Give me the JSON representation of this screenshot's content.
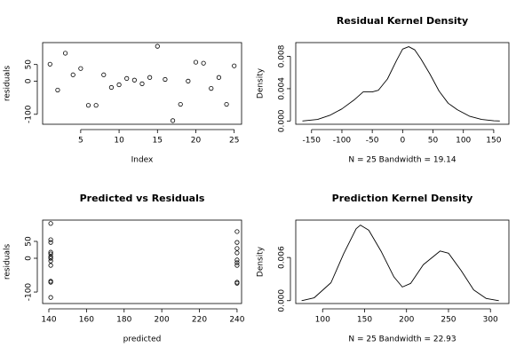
{
  "chart_data": [
    {
      "type": "scatter",
      "xlabel": "Index",
      "ylabel": "residuals",
      "x": [
        1,
        2,
        3,
        4,
        5,
        6,
        7,
        8,
        9,
        10,
        11,
        12,
        13,
        14,
        15,
        16,
        17,
        18,
        19,
        20,
        21,
        22,
        23,
        24,
        25
      ],
      "values": [
        51,
        -27,
        84,
        19,
        38,
        -73,
        -73,
        19,
        -19,
        -11,
        8,
        3,
        -8,
        11,
        105,
        5,
        -119,
        -70,
        0,
        57,
        54,
        -22,
        11,
        -70,
        46
      ],
      "xlim": [
        0.04,
        25.96
      ],
      "xticks": [
        5,
        10,
        15,
        20,
        25
      ],
      "ylim": [
        -130,
        116
      ],
      "yticks": [
        -100,
        0,
        50
      ],
      "color": "#000000"
    },
    {
      "type": "line",
      "title": "Residual Kernel Density",
      "xlabel": "N = 25   Bandwidth = 19.14",
      "ylabel": "Density",
      "x": [
        -165,
        -140,
        -120,
        -100,
        -80,
        -65,
        -50,
        -40,
        -25,
        -10,
        0,
        10,
        20,
        30,
        45,
        60,
        75,
        90,
        110,
        130,
        150,
        160
      ],
      "values": [
        0,
        0.0002,
        0.0007,
        0.0015,
        0.0026,
        0.0036,
        0.0036,
        0.0038,
        0.0052,
        0.0075,
        0.0089,
        0.0092,
        0.0088,
        0.0077,
        0.0058,
        0.0037,
        0.0022,
        0.0014,
        0.0006,
        0.0002,
        3e-05,
        0
      ],
      "xlim": [
        -176,
        175
      ],
      "xticks": [
        -150,
        -100,
        -50,
        0,
        50,
        100,
        150
      ],
      "ylim": [
        -0.0004,
        0.0097
      ],
      "yticks": [
        {
          "value": 0,
          "label": "0.000"
        },
        0.004,
        0.008
      ],
      "color": "#000000"
    },
    {
      "type": "scatter",
      "title": "Predicted vs Residuals",
      "xlabel": "predicted",
      "ylabel": "residuals",
      "x": [
        141,
        141,
        141,
        141,
        141,
        141,
        141,
        141,
        141,
        141,
        141,
        141,
        240,
        240,
        240,
        240,
        240,
        240,
        240,
        240,
        240
      ],
      "values": [
        103,
        55,
        47,
        18,
        13,
        5,
        0,
        -8,
        -21,
        -68,
        -71,
        -116,
        79,
        47,
        29,
        16,
        -5,
        -13,
        -21,
        -71,
        -74
      ],
      "xlim": [
        136.7,
        242.4
      ],
      "xticks": [
        140,
        160,
        180,
        200,
        220,
        240
      ],
      "ylim": [
        -134,
        113
      ],
      "yticks": [
        -100,
        0,
        50
      ],
      "color": "#000000"
    },
    {
      "type": "line",
      "title": "Prediction Kernel Density",
      "xlabel": "N = 25   Bandwidth = 22.93",
      "ylabel": "Density",
      "x": [
        75,
        90,
        110,
        125,
        140,
        145,
        155,
        170,
        185,
        195,
        205,
        220,
        240,
        250,
        265,
        280,
        295,
        310
      ],
      "values": [
        0,
        0.0004,
        0.0025,
        0.0065,
        0.01,
        0.0105,
        0.0098,
        0.0068,
        0.0033,
        0.0019,
        0.0024,
        0.005,
        0.0069,
        0.0066,
        0.0042,
        0.0015,
        0.0003,
        0
      ],
      "xlim": [
        68,
        322
      ],
      "xticks": [
        100,
        150,
        200,
        250,
        300
      ],
      "ylim": [
        -0.0004,
        0.0112
      ],
      "yticks": [
        {
          "value": 0,
          "label": "0.000"
        },
        0.006
      ],
      "color": "#000000"
    }
  ]
}
